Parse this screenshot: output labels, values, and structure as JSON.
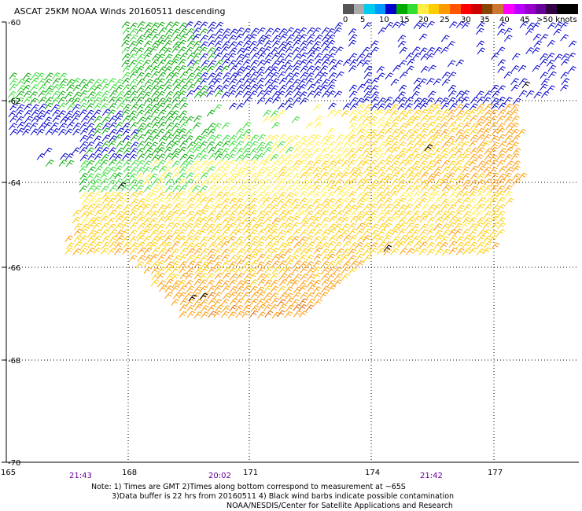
{
  "title": "ASCAT 25KM NOAA Winds 20160511 descending",
  "legend": {
    "labels": [
      "0",
      "5",
      "10",
      "15",
      "20",
      "25",
      "30",
      "35",
      "40",
      "45",
      ">50 knots"
    ],
    "colors": [
      "#555555",
      "#aaaaaa",
      "#00ccee",
      "#0099ff",
      "#0000cc",
      "#00aa00",
      "#33dd33",
      "#ffee44",
      "#ffcc00",
      "#ff9900",
      "#ff5500",
      "#ff0000",
      "#cc0000",
      "#884400",
      "#cc7733",
      "#ff00ff",
      "#bb00ff",
      "#9900cc",
      "#660099",
      "#330044",
      "#000000",
      "#000000"
    ]
  },
  "axes": {
    "lon_ticks": [
      "165",
      "168",
      "171",
      "174",
      "177"
    ],
    "lat_ticks": [
      "-60",
      "-62",
      "-64",
      "-66",
      "-68",
      "-70"
    ]
  },
  "time_labels": [
    "21:43",
    "20:02",
    "21:42"
  ],
  "notes": [
    "Note: 1) Times are GMT 2)Times along bottom correspond to measurement at ~65S",
    "3)Data buffer is 22 hrs from 20160511 4) Black wind barbs indicate possible contamination",
    "NOAA/NESDIS/Center for Satellite Applications and Research"
  ]
}
